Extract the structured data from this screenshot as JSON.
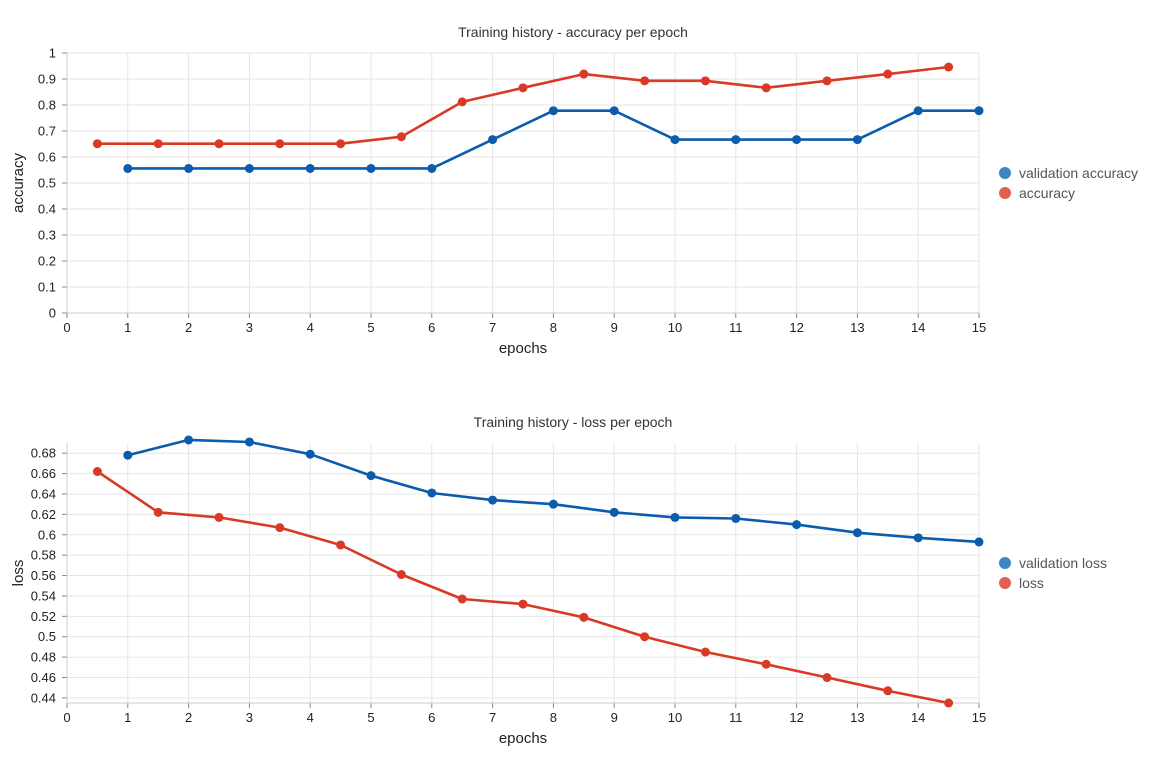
{
  "chart_data": [
    {
      "type": "line",
      "title": "Training history - accuracy per epoch",
      "xlabel": "epochs",
      "ylabel": "accuracy",
      "xlim": [
        0,
        15
      ],
      "ylim": [
        0,
        1
      ],
      "x_ticks": [
        "0",
        "1",
        "2",
        "3",
        "4",
        "5",
        "6",
        "7",
        "8",
        "9",
        "10",
        "11",
        "12",
        "13",
        "14",
        "15"
      ],
      "y_ticks": [
        "0",
        "0.1",
        "0.2",
        "0.3",
        "0.4",
        "0.5",
        "0.6",
        "0.7",
        "0.8",
        "0.9",
        "1"
      ],
      "grid": true,
      "legend_position": "right",
      "series": [
        {
          "name": "validation accuracy",
          "color": "#0b5cad",
          "legend_color": "#3d85c6",
          "x": [
            1,
            2,
            3,
            4,
            5,
            6,
            7,
            8,
            9,
            10,
            11,
            12,
            13,
            14,
            15
          ],
          "y": [
            0.556,
            0.556,
            0.556,
            0.556,
            0.556,
            0.556,
            0.667,
            0.778,
            0.778,
            0.667,
            0.667,
            0.667,
            0.667,
            0.778,
            0.778
          ]
        },
        {
          "name": "accuracy",
          "color": "#d93a25",
          "legend_color": "#e06150",
          "x": [
            0.5,
            1.5,
            2.5,
            3.5,
            4.5,
            5.5,
            6.5,
            7.5,
            8.5,
            9.5,
            10.5,
            11.5,
            12.5,
            13.5,
            14.5
          ],
          "y": [
            0.651,
            0.651,
            0.651,
            0.651,
            0.651,
            0.678,
            0.812,
            0.866,
            0.919,
            0.893,
            0.893,
            0.866,
            0.893,
            0.919,
            0.946
          ]
        }
      ]
    },
    {
      "type": "line",
      "title": "Training history - loss per epoch",
      "xlabel": "epochs",
      "ylabel": "loss",
      "xlim": [
        0,
        15
      ],
      "ylim": [
        0.435,
        0.69
      ],
      "x_ticks": [
        "0",
        "1",
        "2",
        "3",
        "4",
        "5",
        "6",
        "7",
        "8",
        "9",
        "10",
        "11",
        "12",
        "13",
        "14",
        "15"
      ],
      "y_ticks": [
        "0.44",
        "0.46",
        "0.48",
        "0.5",
        "0.52",
        "0.54",
        "0.56",
        "0.58",
        "0.6",
        "0.62",
        "0.64",
        "0.66",
        "0.68"
      ],
      "grid": true,
      "legend_position": "right",
      "series": [
        {
          "name": "validation loss",
          "color": "#0b5cad",
          "legend_color": "#3d85c6",
          "x": [
            1,
            2,
            3,
            4,
            5,
            6,
            7,
            8,
            9,
            10,
            11,
            12,
            13,
            14,
            15
          ],
          "y": [
            0.678,
            0.693,
            0.691,
            0.679,
            0.658,
            0.641,
            0.634,
            0.63,
            0.622,
            0.617,
            0.616,
            0.61,
            0.602,
            0.597,
            0.593
          ]
        },
        {
          "name": "loss",
          "color": "#d93a25",
          "legend_color": "#e06150",
          "x": [
            0.5,
            1.5,
            2.5,
            3.5,
            4.5,
            5.5,
            6.5,
            7.5,
            8.5,
            9.5,
            10.5,
            11.5,
            12.5,
            13.5,
            14.5
          ],
          "y": [
            0.662,
            0.622,
            0.617,
            0.607,
            0.59,
            0.561,
            0.537,
            0.532,
            0.519,
            0.5,
            0.485,
            0.473,
            0.46,
            0.447,
            0.435
          ]
        }
      ]
    }
  ]
}
